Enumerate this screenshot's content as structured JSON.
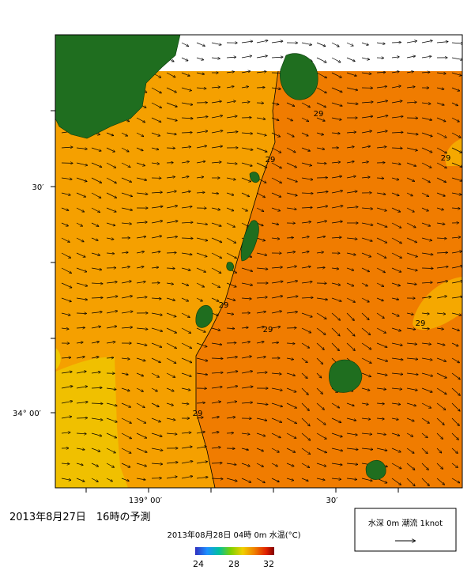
{
  "title": "2013年8月27日　16時の予測",
  "subtitle": "2013年08月28日 04時 0m 水温(°C)",
  "colorbar": {
    "labels": [
      "24",
      "28",
      "32"
    ]
  },
  "legend": {
    "text": "水深 0m 潮流 1knot"
  },
  "axes": {
    "y_labels": [
      "30′",
      "34° 00′"
    ],
    "x_labels": [
      "139° 00′",
      "30′"
    ]
  },
  "contour_labels": [
    "29",
    "29",
    "29",
    "29",
    "29",
    "29",
    "29"
  ]
}
